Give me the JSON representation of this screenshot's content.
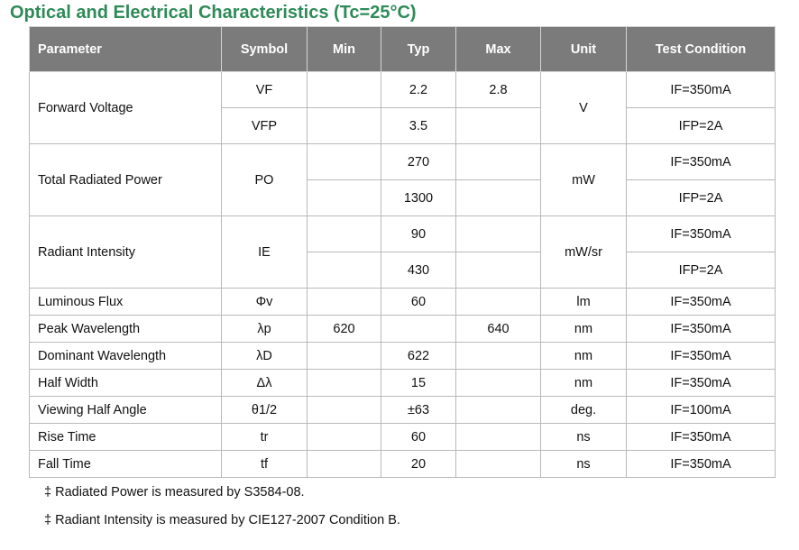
{
  "title": "Optical and Electrical Characteristics (Tc=25°C)",
  "headers": [
    "Parameter",
    "Symbol",
    "Min",
    "Typ",
    "Max",
    "Unit",
    "Test Condition"
  ],
  "rows": {
    "fv": {
      "param": "Forward Voltage",
      "unit": "V",
      "a": {
        "symbol": "VF",
        "min": "",
        "typ": "2.2",
        "max": "2.8",
        "cond": "IF=350mA"
      },
      "b": {
        "symbol": "VFP",
        "min": "",
        "typ": "3.5",
        "max": "",
        "cond": "IFP=2A"
      }
    },
    "trp": {
      "param": "Total Radiated Power",
      "symbol": "PO",
      "unit": "mW",
      "a": {
        "min": "",
        "typ": "270",
        "max": "",
        "cond": "IF=350mA"
      },
      "b": {
        "min": "",
        "typ": "1300",
        "max": "",
        "cond": "IFP=2A"
      }
    },
    "ri": {
      "param": "Radiant Intensity",
      "symbol": "IE",
      "unit": "mW/sr",
      "a": {
        "min": "",
        "typ": "90",
        "max": "",
        "cond": "IF=350mA"
      },
      "b": {
        "min": "",
        "typ": "430",
        "max": "",
        "cond": "IFP=2A"
      }
    },
    "simple": [
      {
        "param": "Luminous Flux",
        "symbol": "Φv",
        "min": "",
        "typ": "60",
        "max": "",
        "unit": "lm",
        "cond": "IF=350mA"
      },
      {
        "param": "Peak Wavelength",
        "symbol": "λp",
        "min": "620",
        "typ": "",
        "max": "640",
        "unit": "nm",
        "cond": "IF=350mA"
      },
      {
        "param": "Dominant Wavelength",
        "symbol": "λD",
        "min": "",
        "typ": "622",
        "max": "",
        "unit": "nm",
        "cond": "IF=350mA"
      },
      {
        "param": "Half Width",
        "symbol": "Δλ",
        "min": "",
        "typ": "15",
        "max": "",
        "unit": "nm",
        "cond": "IF=350mA"
      },
      {
        "param": "Viewing Half Angle",
        "symbol": "θ1/2",
        "min": "",
        "typ": "±63",
        "max": "",
        "unit": "deg.",
        "cond": "IF=100mA"
      },
      {
        "param": "Rise Time",
        "symbol": "tr",
        "min": "",
        "typ": "60",
        "max": "",
        "unit": "ns",
        "cond": "IF=350mA"
      },
      {
        "param": "Fall Time",
        "symbol": "tf",
        "min": "",
        "typ": "20",
        "max": "",
        "unit": "ns",
        "cond": "IF=350mA"
      }
    ]
  },
  "notes": [
    "‡ Radiated Power is measured by S3584-08.",
    "‡ Radiant Intensity is measured by CIE127-2007 Condition B."
  ]
}
